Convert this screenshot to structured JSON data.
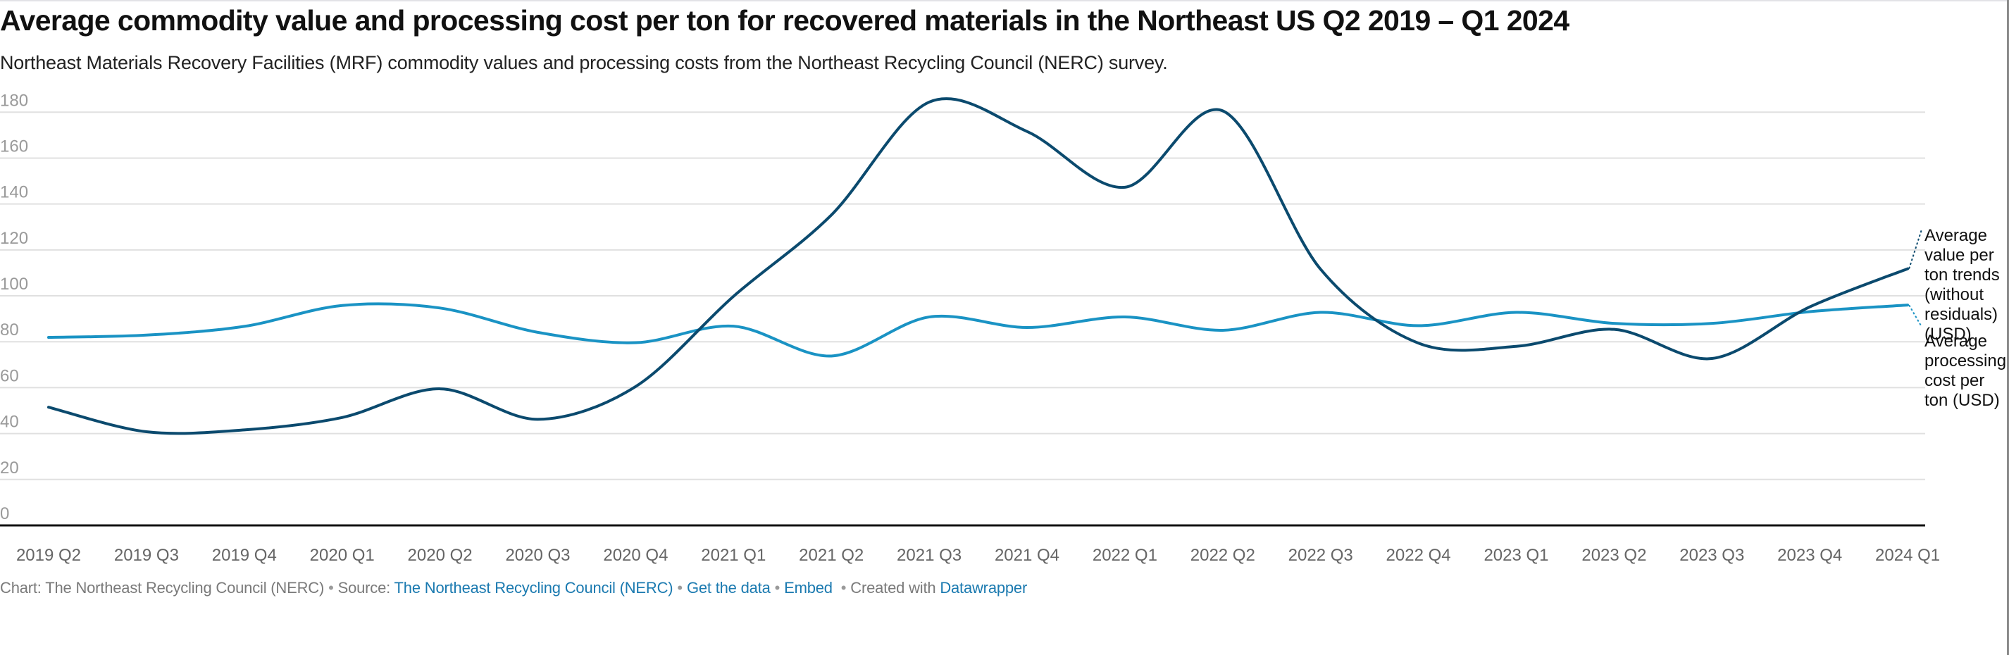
{
  "title": "Average commodity value and processing cost per ton for recovered materials in the Northeast US Q2 2019 – Q1 2024",
  "subtitle": "Northeast Materials Recovery Facilities (MRF) commodity values and processing costs from the Northeast Recycling Council (NERC) survey.",
  "footer": {
    "chart_prefix": "Chart: The Northeast Recycling Council (NERC)",
    "source_prefix": "Source:",
    "source_link": "The Northeast Recycling Council (NERC)",
    "get_data": "Get the data",
    "embed": "Embed",
    "created_with": "Created with",
    "datawrapper": "Datawrapper",
    "separator": "•"
  },
  "colors": {
    "value_series": "#0b4a6e",
    "cost_series": "#1a93c4",
    "gridline": "#e0e0e0",
    "axis": "#111111",
    "link": "#1b7ab0"
  },
  "chart_data": {
    "type": "line",
    "title": "Average commodity value and processing cost per ton for recovered materials in the Northeast US Q2 2019 – Q1 2024",
    "xlabel": "",
    "ylabel": "",
    "ylim": [
      0,
      180
    ],
    "yticks": [
      0,
      20,
      40,
      60,
      80,
      100,
      120,
      140,
      160,
      180
    ],
    "grid": true,
    "legend": "direct labels at right end of lines",
    "x": [
      "2019 Q2",
      "2019 Q3",
      "2019 Q4",
      "2020 Q1",
      "2020 Q2",
      "2020 Q3",
      "2020 Q4",
      "2021 Q1",
      "2021 Q2",
      "2021 Q3",
      "2021 Q4",
      "2022 Q1",
      "2022 Q2",
      "2022 Q3",
      "2022 Q4",
      "2023 Q1",
      "2023 Q2",
      "2023 Q3",
      "2023 Q4",
      "2024 Q1"
    ],
    "series": [
      {
        "name": "Average value per ton trends (without residuals) (USD)",
        "color": "#0b4a6e",
        "values": [
          51.5,
          40.8,
          41.6,
          47.0,
          59.5,
          46.2,
          60.5,
          99.8,
          135.2,
          184.4,
          171.6,
          147.3,
          180.6,
          111.6,
          79.4,
          78.0,
          85.4,
          72.7,
          95.2,
          111.8
        ]
      },
      {
        "name": "Average processing cost per ton (USD)",
        "color": "#1a93c4",
        "values": [
          81.9,
          82.9,
          86.7,
          95.8,
          94.7,
          84.1,
          79.6,
          86.8,
          73.8,
          90.8,
          86.2,
          90.8,
          85.0,
          92.8,
          87.0,
          92.8,
          88.0,
          88.0,
          93.1,
          96.0
        ]
      }
    ],
    "series_labels": [
      [
        "Average",
        "value per",
        "ton trends",
        "(without",
        "residuals)",
        "(USD)"
      ],
      [
        "Average",
        "processing",
        "cost per",
        "ton (USD)"
      ]
    ]
  }
}
